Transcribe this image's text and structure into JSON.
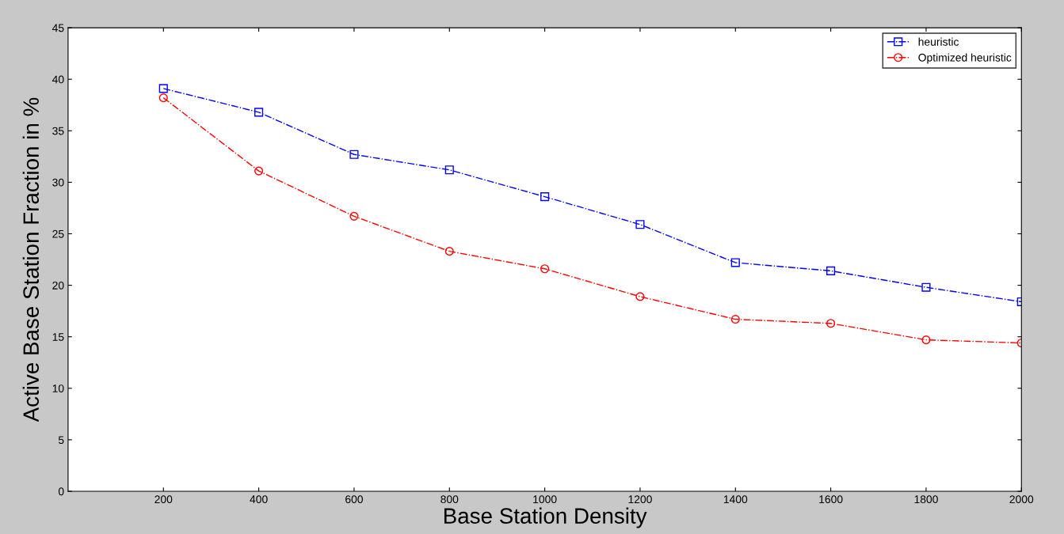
{
  "chart_data": {
    "type": "line",
    "xlabel": "Base Station Density",
    "ylabel": "Active Base Station Fraction in %",
    "x": [
      200,
      400,
      600,
      800,
      1000,
      1200,
      1400,
      1600,
      1800,
      2000
    ],
    "series": [
      {
        "name": "heuristic",
        "color": "#0000ff",
        "marker": "square",
        "values": [
          39.1,
          36.8,
          32.7,
          31.2,
          28.6,
          25.9,
          22.2,
          21.4,
          19.8,
          18.4
        ]
      },
      {
        "name": "Optimized heuristic",
        "color": "#ff0000",
        "marker": "circle",
        "values": [
          38.2,
          31.1,
          26.7,
          23.3,
          21.6,
          18.9,
          16.7,
          16.3,
          14.7,
          14.4
        ]
      }
    ],
    "line_style": "dashdot",
    "grid": false,
    "legend": "top right",
    "xlim": [
      0,
      2000
    ],
    "xticks": [
      200,
      400,
      600,
      800,
      1000,
      1200,
      1400,
      1600,
      1800,
      2000
    ],
    "ylim": [
      0,
      45
    ],
    "yticks": [
      0,
      5,
      10,
      15,
      20,
      25,
      30,
      35,
      40,
      45
    ]
  }
}
